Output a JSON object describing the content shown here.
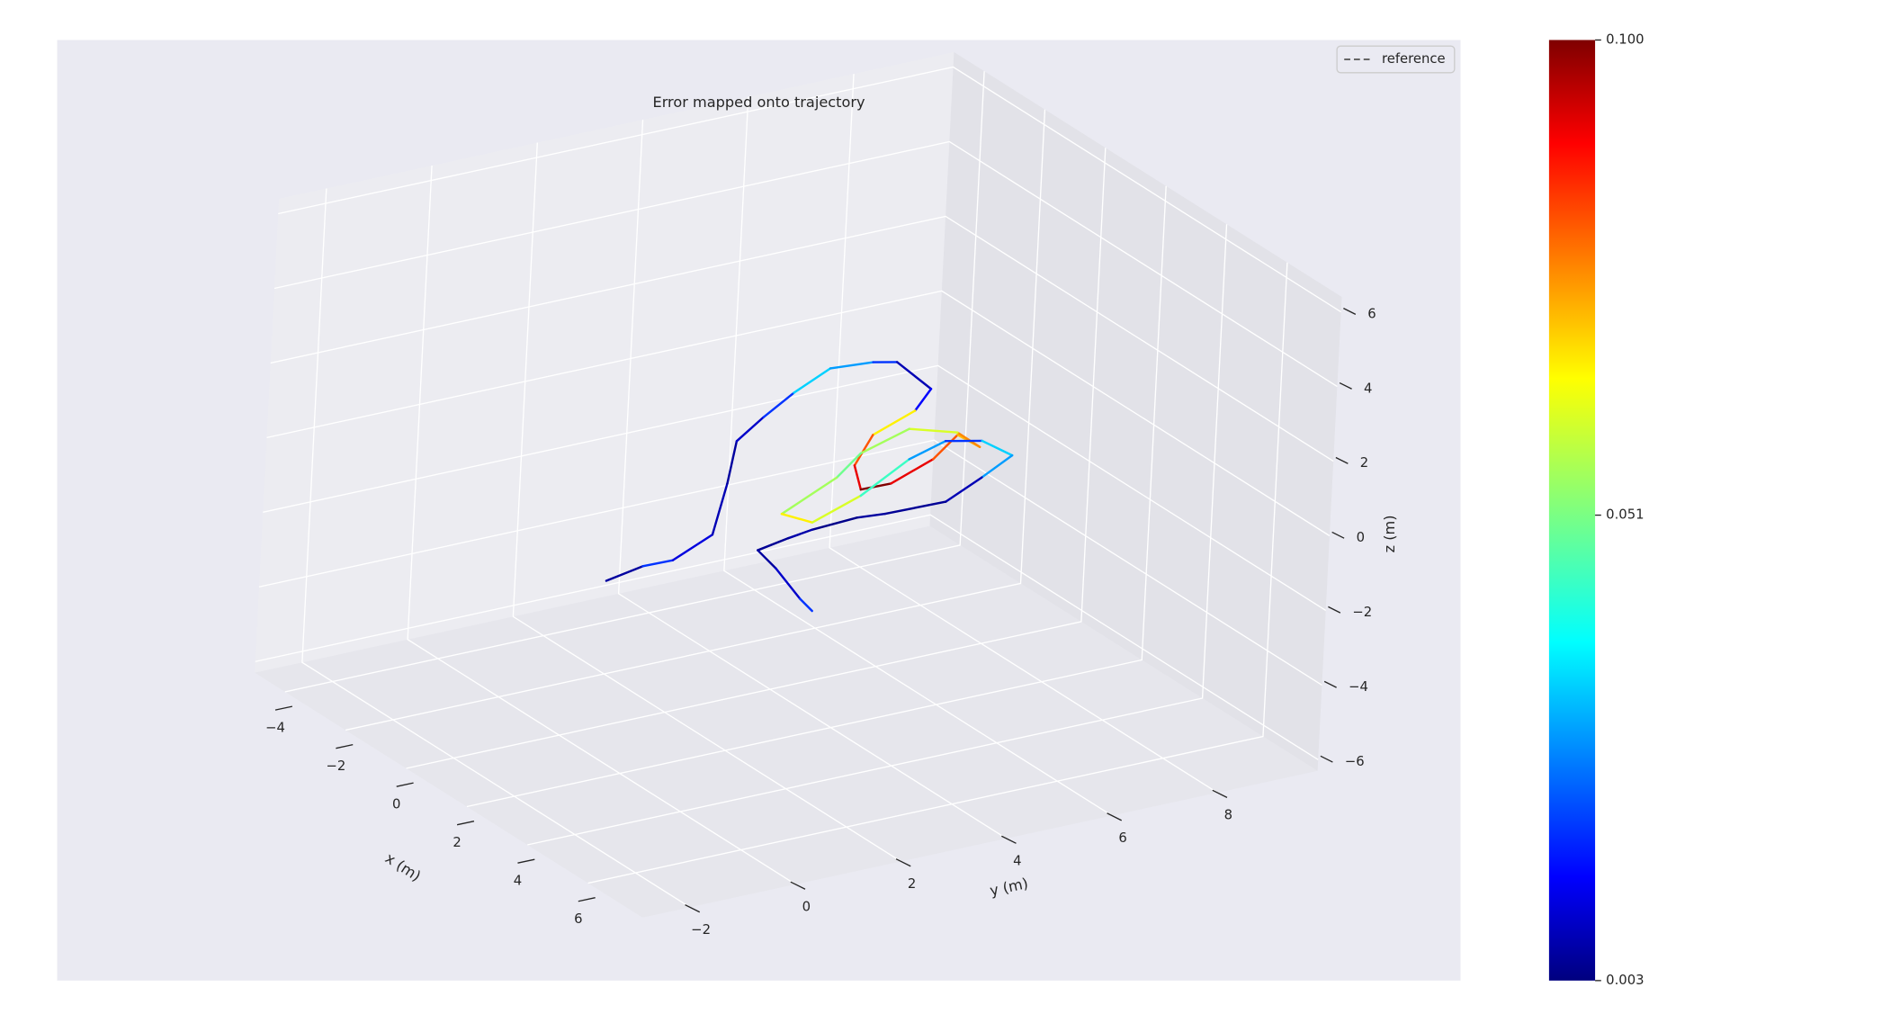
{
  "chart_data": {
    "type": "trajectory3d",
    "title": "Error mapped onto trajectory",
    "xlabel": "x (m)",
    "ylabel": "y (m)",
    "zlabel": "z (m)",
    "xlim": [
      -5,
      7.8
    ],
    "ylim": [
      -2.9,
      9.9
    ],
    "zlim": [
      -6.3,
      6.4
    ],
    "xticks": [
      {
        "value": -4,
        "label": "−4"
      },
      {
        "value": -2,
        "label": "−2"
      },
      0,
      2,
      4,
      6
    ],
    "yticks": [
      {
        "value": -2,
        "label": "−2"
      },
      0,
      2,
      4,
      6,
      8
    ],
    "zticks": [
      {
        "value": -6,
        "label": "−6"
      },
      {
        "value": -4,
        "label": "−4"
      },
      {
        "value": -2,
        "label": "−2"
      },
      0,
      2,
      4,
      6
    ],
    "grid": true,
    "legend": {
      "name": "reference",
      "color": "#666666",
      "dashed": true,
      "corner": "upper right"
    },
    "trajectory": {
      "x": [
        3.44,
        3.18,
        3.2,
        2.54,
        0.68,
        -0.89,
        -1.6,
        -2.29,
        -2.93,
        -2.81,
        -2.61,
        -1.28,
        -0.57,
        0.02,
        1.05,
        2.04,
        2.06,
        1.47,
        0.73,
        1.39,
        0.64,
        0.09,
        0.63,
        1.37,
        2.32,
        2.91,
        2.28,
        1.27,
        0.87,
        1.17,
        1.99,
        2.59,
        3.23,
        3.19,
        3.1,
        3.19,
        3.32,
        3.53,
        4.39,
        5.78,
        6.35
      ],
      "y": [
        -1.31,
        -0.47,
        0.09,
        1.22,
        2.57,
        3.65,
        4.57,
        5.54,
        6.6,
        7.34,
        7.68,
        7.56,
        6.85,
        5.71,
        4.77,
        4.32,
        4.88,
        6.02,
        6.91,
        6.95,
        6.96,
        6.36,
        5.13,
        4.25,
        2.66,
        2.9,
        4.18,
        5.68,
        6.6,
        7.12,
        7.22,
        6.3,
        5.25,
        4.12,
        3.64,
        2.74,
        2.21,
        1.51,
        1.36,
        1.02,
        0.92
      ],
      "z": [
        0,
        0,
        0,
        0,
        0,
        0,
        0,
        0,
        0,
        0,
        0,
        0,
        0,
        0,
        0,
        0,
        0,
        0,
        0,
        0,
        0,
        0,
        0,
        0,
        0,
        0,
        0,
        0,
        0,
        0,
        0,
        0,
        0,
        0,
        0,
        0,
        0,
        0,
        0,
        0,
        0
      ],
      "error": [
        0.006,
        0.02,
        0.012,
        0.008,
        0.006,
        0.01,
        0.02,
        0.035,
        0.03,
        0.02,
        0.008,
        0.015,
        0.065,
        0.08,
        0.09,
        0.1,
        0.09,
        0.08,
        0.07,
        0.075,
        0.06,
        0.055,
        0.05,
        0.055,
        0.065,
        0.06,
        0.045,
        0.03,
        0.02,
        0.035,
        0.03,
        0.008,
        0.005,
        0.006,
        0.004,
        0.007,
        0.005,
        0.006,
        0.01,
        0.02,
        0.015
      ]
    },
    "colorbar": {
      "colormap": "jet",
      "clim": [
        0.003,
        0.1
      ],
      "ticks": [
        0.003,
        0.051,
        {
          "value": 0.1,
          "label": "0.100"
        }
      ]
    }
  }
}
